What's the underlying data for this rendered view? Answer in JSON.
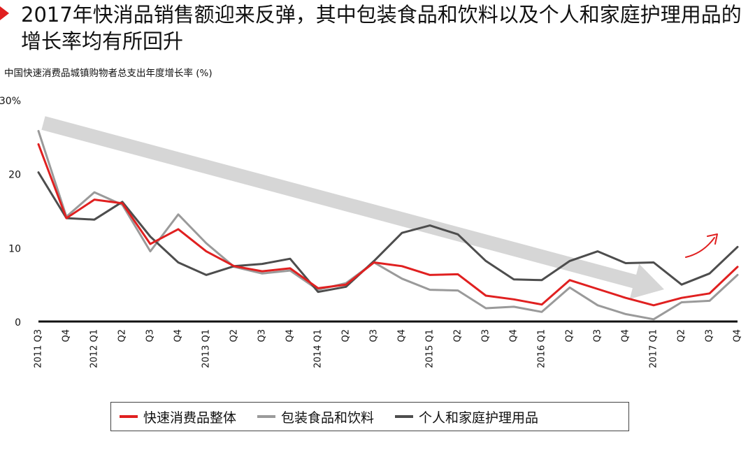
{
  "title": "2017年快消品销售额迎来反弹，其中包装食品和饮料以及个人和家庭护理用品的增长率均有所回升",
  "subtitle": "中国快速消费品城镇购物者总支出年度增长率 (%)",
  "colors": {
    "accent": "#e02020",
    "total": "#e02020",
    "food": "#9a9a9a",
    "care": "#4d4d4d",
    "trend_arrow": "#d6d6d6"
  },
  "chart_data": {
    "type": "line",
    "x": [
      "2011 Q3",
      "Q4",
      "2012 Q1",
      "Q2",
      "Q3",
      "Q4",
      "2013 Q1",
      "Q2",
      "Q3",
      "Q4",
      "2014 Q1",
      "Q2",
      "Q3",
      "Q4",
      "2015 Q1",
      "Q2",
      "Q3",
      "Q4",
      "2016 Q1",
      "Q2",
      "Q3",
      "Q4",
      "2017 Q1",
      "Q2",
      "Q3",
      "Q4"
    ],
    "ylim": [
      0,
      30
    ],
    "yticks": [
      0,
      10,
      20
    ],
    "ytick_labels": [
      "0",
      "10",
      "20",
      "30%"
    ],
    "ytick_values": [
      0,
      10,
      20,
      30
    ],
    "series": [
      {
        "name": "快速消费品整体",
        "color": "#e02020",
        "values": [
          24,
          14,
          16.5,
          16,
          10.5,
          12.5,
          9.5,
          7.5,
          6.8,
          7.2,
          4.5,
          5,
          8,
          7.5,
          6.3,
          6.4,
          3.5,
          3,
          2.3,
          5.6,
          4.4,
          3.2,
          2.2,
          3.2,
          3.8,
          7.4
        ]
      },
      {
        "name": "包装食品和饮料",
        "color": "#9a9a9a",
        "values": [
          25.8,
          14.2,
          17.5,
          15.8,
          9.5,
          14.5,
          10.6,
          7.4,
          6.5,
          6.9,
          4.3,
          5.2,
          8,
          5.8,
          4.3,
          4.2,
          1.8,
          2,
          1.3,
          4.6,
          2.2,
          1,
          0.3,
          2.6,
          2.8,
          6.3
        ]
      },
      {
        "name": "个人和家庭护理用品",
        "color": "#4d4d4d",
        "values": [
          20.2,
          14,
          13.8,
          16.2,
          11.5,
          8,
          6.3,
          7.5,
          7.8,
          8.5,
          4,
          4.7,
          8.2,
          12,
          13,
          11.8,
          8.2,
          5.7,
          5.6,
          8.2,
          9.5,
          7.9,
          8,
          5,
          6.5,
          10.1
        ]
      }
    ]
  }
}
